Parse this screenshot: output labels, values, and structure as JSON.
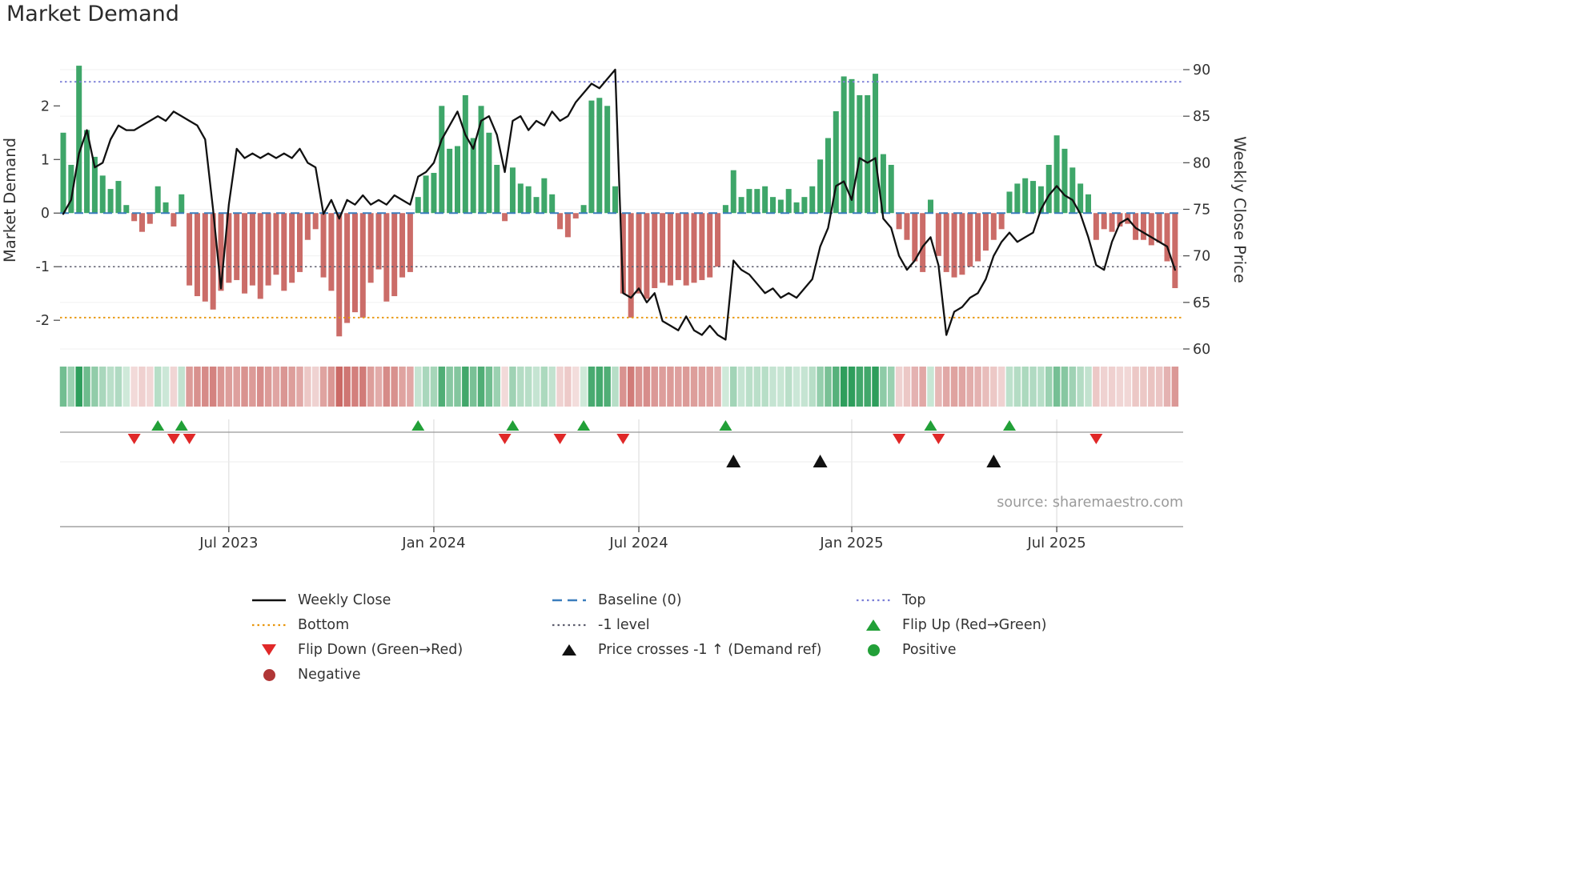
{
  "title": "Market Demand",
  "source": "source: sharemaestro.com",
  "colors": {
    "line": "#111111",
    "baseline": "#3b7dbd",
    "top": "#7b7fd7",
    "bottom": "#e8960c",
    "minus_one": "#5d5d6e",
    "positive_bar": "#2e9e5c",
    "negative_bar": "#c75f5b",
    "flip_up": "#22a038",
    "flip_down": "#e02828",
    "price_cross": "#111111",
    "positive_dot": "#22a038",
    "negative_dot": "#b03636",
    "grid": "#f0f0f0",
    "panel_grid": "#d8d8d8",
    "flip_line": "#999999",
    "spine": "#8f8f8f",
    "axis_text": "#333333",
    "source_text": "#9b9b9b"
  },
  "chart_data": {
    "type": "bar+line",
    "x_unit": "weekly",
    "title": "Market Demand",
    "left_axis": {
      "label": "Market Demand",
      "ticks": [
        -2,
        -1,
        0,
        1,
        2
      ],
      "range": [
        -2.55,
        3.05
      ]
    },
    "right_axis": {
      "label": "Weekly Close Price",
      "ticks": [
        60,
        65,
        70,
        75,
        80,
        85,
        90
      ],
      "range": [
        59.9,
        92.2
      ]
    },
    "x_ticks": [
      {
        "index": 21,
        "label": "Jul 2023"
      },
      {
        "index": 47,
        "label": "Jan 2024"
      },
      {
        "index": 73,
        "label": "Jul 2024"
      },
      {
        "index": 100,
        "label": "Jan 2025"
      },
      {
        "index": 126,
        "label": "Jul 2025"
      }
    ],
    "ref_lines": {
      "top": 2.45,
      "baseline": 0,
      "minus_one": -1,
      "bottom": -1.95
    },
    "demand": [
      1.5,
      0.9,
      2.75,
      1.55,
      1.05,
      0.7,
      0.45,
      0.6,
      0.15,
      -0.15,
      -0.35,
      -0.2,
      0.5,
      0.2,
      -0.25,
      0.35,
      -1.35,
      -1.55,
      -1.65,
      -1.8,
      -1.45,
      -1.3,
      -1.25,
      -1.5,
      -1.35,
      -1.6,
      -1.35,
      -1.15,
      -1.45,
      -1.3,
      -1.1,
      -0.5,
      -0.3,
      -1.2,
      -1.45,
      -2.3,
      -2.05,
      -1.85,
      -1.95,
      -1.3,
      -1.05,
      -1.65,
      -1.55,
      -1.2,
      -1.1,
      0.3,
      0.7,
      0.75,
      2.0,
      1.2,
      1.25,
      2.2,
      1.4,
      2.0,
      1.5,
      0.9,
      -0.15,
      0.85,
      0.55,
      0.5,
      0.3,
      0.65,
      0.35,
      -0.3,
      -0.45,
      -0.1,
      0.15,
      2.1,
      2.15,
      2.0,
      0.5,
      -1.5,
      -1.95,
      -1.5,
      -1.6,
      -1.4,
      -1.3,
      -1.35,
      -1.25,
      -1.35,
      -1.3,
      -1.25,
      -1.2,
      -1.0,
      0.15,
      0.8,
      0.3,
      0.45,
      0.45,
      0.5,
      0.3,
      0.25,
      0.45,
      0.2,
      0.3,
      0.5,
      1.0,
      1.4,
      1.9,
      2.55,
      2.5,
      2.2,
      2.2,
      2.6,
      1.1,
      0.9,
      -0.3,
      -0.5,
      -0.9,
      -1.1,
      0.25,
      -0.8,
      -1.1,
      -1.2,
      -1.15,
      -1.0,
      -0.9,
      -0.7,
      -0.5,
      -0.3,
      0.4,
      0.55,
      0.65,
      0.6,
      0.5,
      0.9,
      1.45,
      1.2,
      0.85,
      0.55,
      0.35,
      -0.5,
      -0.3,
      -0.35,
      -0.25,
      -0.2,
      -0.5,
      -0.5,
      -0.6,
      -0.55,
      -0.9,
      -1.4
    ],
    "weekly_close": [
      74.5,
      76.0,
      81.0,
      83.5,
      79.5,
      80.0,
      82.5,
      84.0,
      83.5,
      83.5,
      84.0,
      84.5,
      85.0,
      84.5,
      85.5,
      85.0,
      84.5,
      84.0,
      82.5,
      75.0,
      66.5,
      75.5,
      81.5,
      80.5,
      81.0,
      80.5,
      81.0,
      80.5,
      81.0,
      80.5,
      81.5,
      80.0,
      79.5,
      74.5,
      76.0,
      74.0,
      76.0,
      75.5,
      76.5,
      75.5,
      76.0,
      75.5,
      76.5,
      76.0,
      75.5,
      78.5,
      79.0,
      80.0,
      82.5,
      84.0,
      85.5,
      83.0,
      81.5,
      84.5,
      85.0,
      83.0,
      79.0,
      84.5,
      85.0,
      83.5,
      84.5,
      84.0,
      85.5,
      84.5,
      85.0,
      86.5,
      87.5,
      88.5,
      88.0,
      89.0,
      90.0,
      66.0,
      65.5,
      66.5,
      65.0,
      66.0,
      63.0,
      62.5,
      62.0,
      63.5,
      62.0,
      61.5,
      62.5,
      61.5,
      61.0,
      69.5,
      68.5,
      68.0,
      67.0,
      66.0,
      66.5,
      65.5,
      66.0,
      65.5,
      66.5,
      67.5,
      71.0,
      73.0,
      77.5,
      78.0,
      76.0,
      80.5,
      80.0,
      80.5,
      74.0,
      73.0,
      70.0,
      68.5,
      69.5,
      71.0,
      72.0,
      69.0,
      61.5,
      64.0,
      64.5,
      65.5,
      66.0,
      67.5,
      70.0,
      71.5,
      72.5,
      71.5,
      72.0,
      72.5,
      75.0,
      76.5,
      77.5,
      76.5,
      76.0,
      74.5,
      72.0,
      69.0,
      68.5,
      71.5,
      73.5,
      74.0,
      73.0,
      72.5,
      72.0,
      71.5,
      71.0,
      68.5
    ],
    "markers": {
      "flip_up_weeks": [
        12,
        15,
        45,
        57,
        66,
        84,
        110,
        120
      ],
      "flip_down_weeks": [
        9,
        14,
        16,
        56,
        63,
        71,
        106,
        111,
        131
      ],
      "price_cross_weeks": [
        85,
        96,
        118
      ]
    },
    "legend_position": "bottom"
  },
  "legend": {
    "columns": [
      {
        "items": [
          {
            "label": "Weekly Close",
            "swatch": "solid",
            "color": "line"
          },
          {
            "label": "Bottom",
            "swatch": "dotted",
            "color": "bottom"
          },
          {
            "label": "Flip Down (Green→Red)",
            "swatch": "tri-down",
            "color": "flip_down"
          },
          {
            "label": "Negative",
            "swatch": "dot",
            "color": "negative_dot"
          }
        ]
      },
      {
        "items": [
          {
            "label": "Baseline (0)",
            "swatch": "dashed",
            "color": "baseline"
          },
          {
            "label": "-1 level",
            "swatch": "dotted",
            "color": "minus_one"
          },
          {
            "label": "Price crosses -1 ↑ (Demand ref)",
            "swatch": "tri-up",
            "color": "price_cross"
          }
        ]
      },
      {
        "items": [
          {
            "label": "Top",
            "swatch": "dotted",
            "color": "top"
          },
          {
            "label": "Flip Up (Red→Green)",
            "swatch": "tri-up",
            "color": "flip_up"
          },
          {
            "label": "Positive",
            "swatch": "dot",
            "color": "positive_dot"
          }
        ]
      }
    ]
  }
}
